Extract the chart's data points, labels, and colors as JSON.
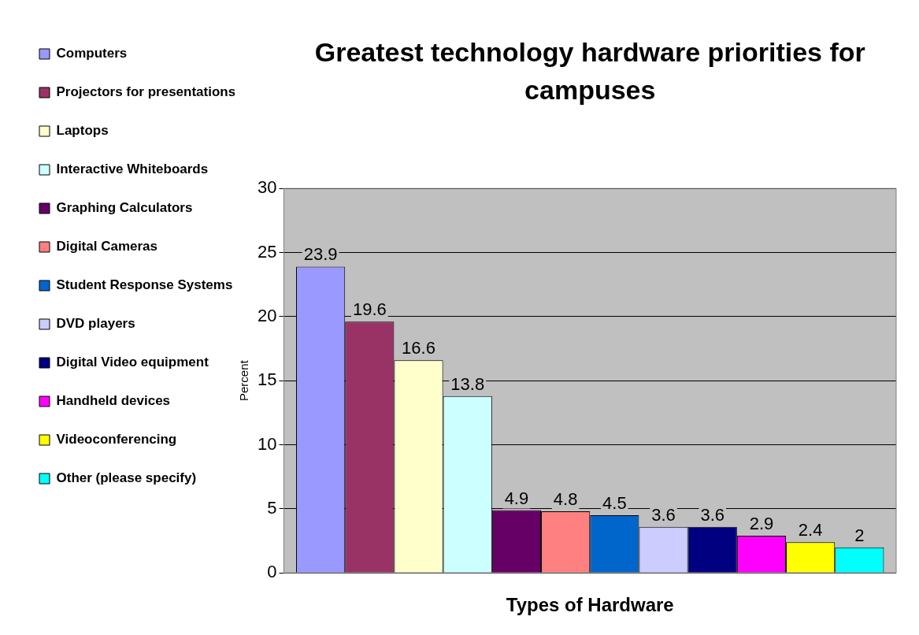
{
  "chart_data": {
    "type": "bar",
    "title": "Greatest technology hardware priorities for campuses",
    "xlabel": "Types of Hardware",
    "ylabel": "Percent",
    "categories": [
      null
    ],
    "series": [
      {
        "name": "Computers",
        "color": "#9999ff",
        "values": [
          23.9
        ]
      },
      {
        "name": "Projectors for presentations",
        "color": "#993366",
        "values": [
          19.6
        ]
      },
      {
        "name": "Laptops",
        "color": "#ffffcc",
        "values": [
          16.6
        ]
      },
      {
        "name": "Interactive Whiteboards",
        "color": "#ccffff",
        "values": [
          13.8
        ]
      },
      {
        "name": "Graphing Calculators",
        "color": "#660066",
        "values": [
          4.9
        ]
      },
      {
        "name": "Digital Cameras",
        "color": "#ff8080",
        "values": [
          4.8
        ]
      },
      {
        "name": "Student Response Systems",
        "color": "#0066cc",
        "values": [
          4.5
        ]
      },
      {
        "name": "DVD players",
        "color": "#ccccff",
        "values": [
          3.6
        ]
      },
      {
        "name": "Digital Video equipment",
        "color": "#000080",
        "values": [
          3.6
        ]
      },
      {
        "name": "Handheld devices",
        "color": "#ff00ff",
        "values": [
          2.9
        ]
      },
      {
        "name": "Videoconferencing",
        "color": "#ffff00",
        "values": [
          2.4
        ]
      },
      {
        "name": "Other (please specify)",
        "color": "#00ffff",
        "values": [
          2
        ]
      }
    ],
    "ylim": [
      0,
      30
    ],
    "yticks": [
      0,
      5,
      10,
      15,
      20,
      25,
      30
    ],
    "grid": "y",
    "legend": "left",
    "data_labels": true
  }
}
